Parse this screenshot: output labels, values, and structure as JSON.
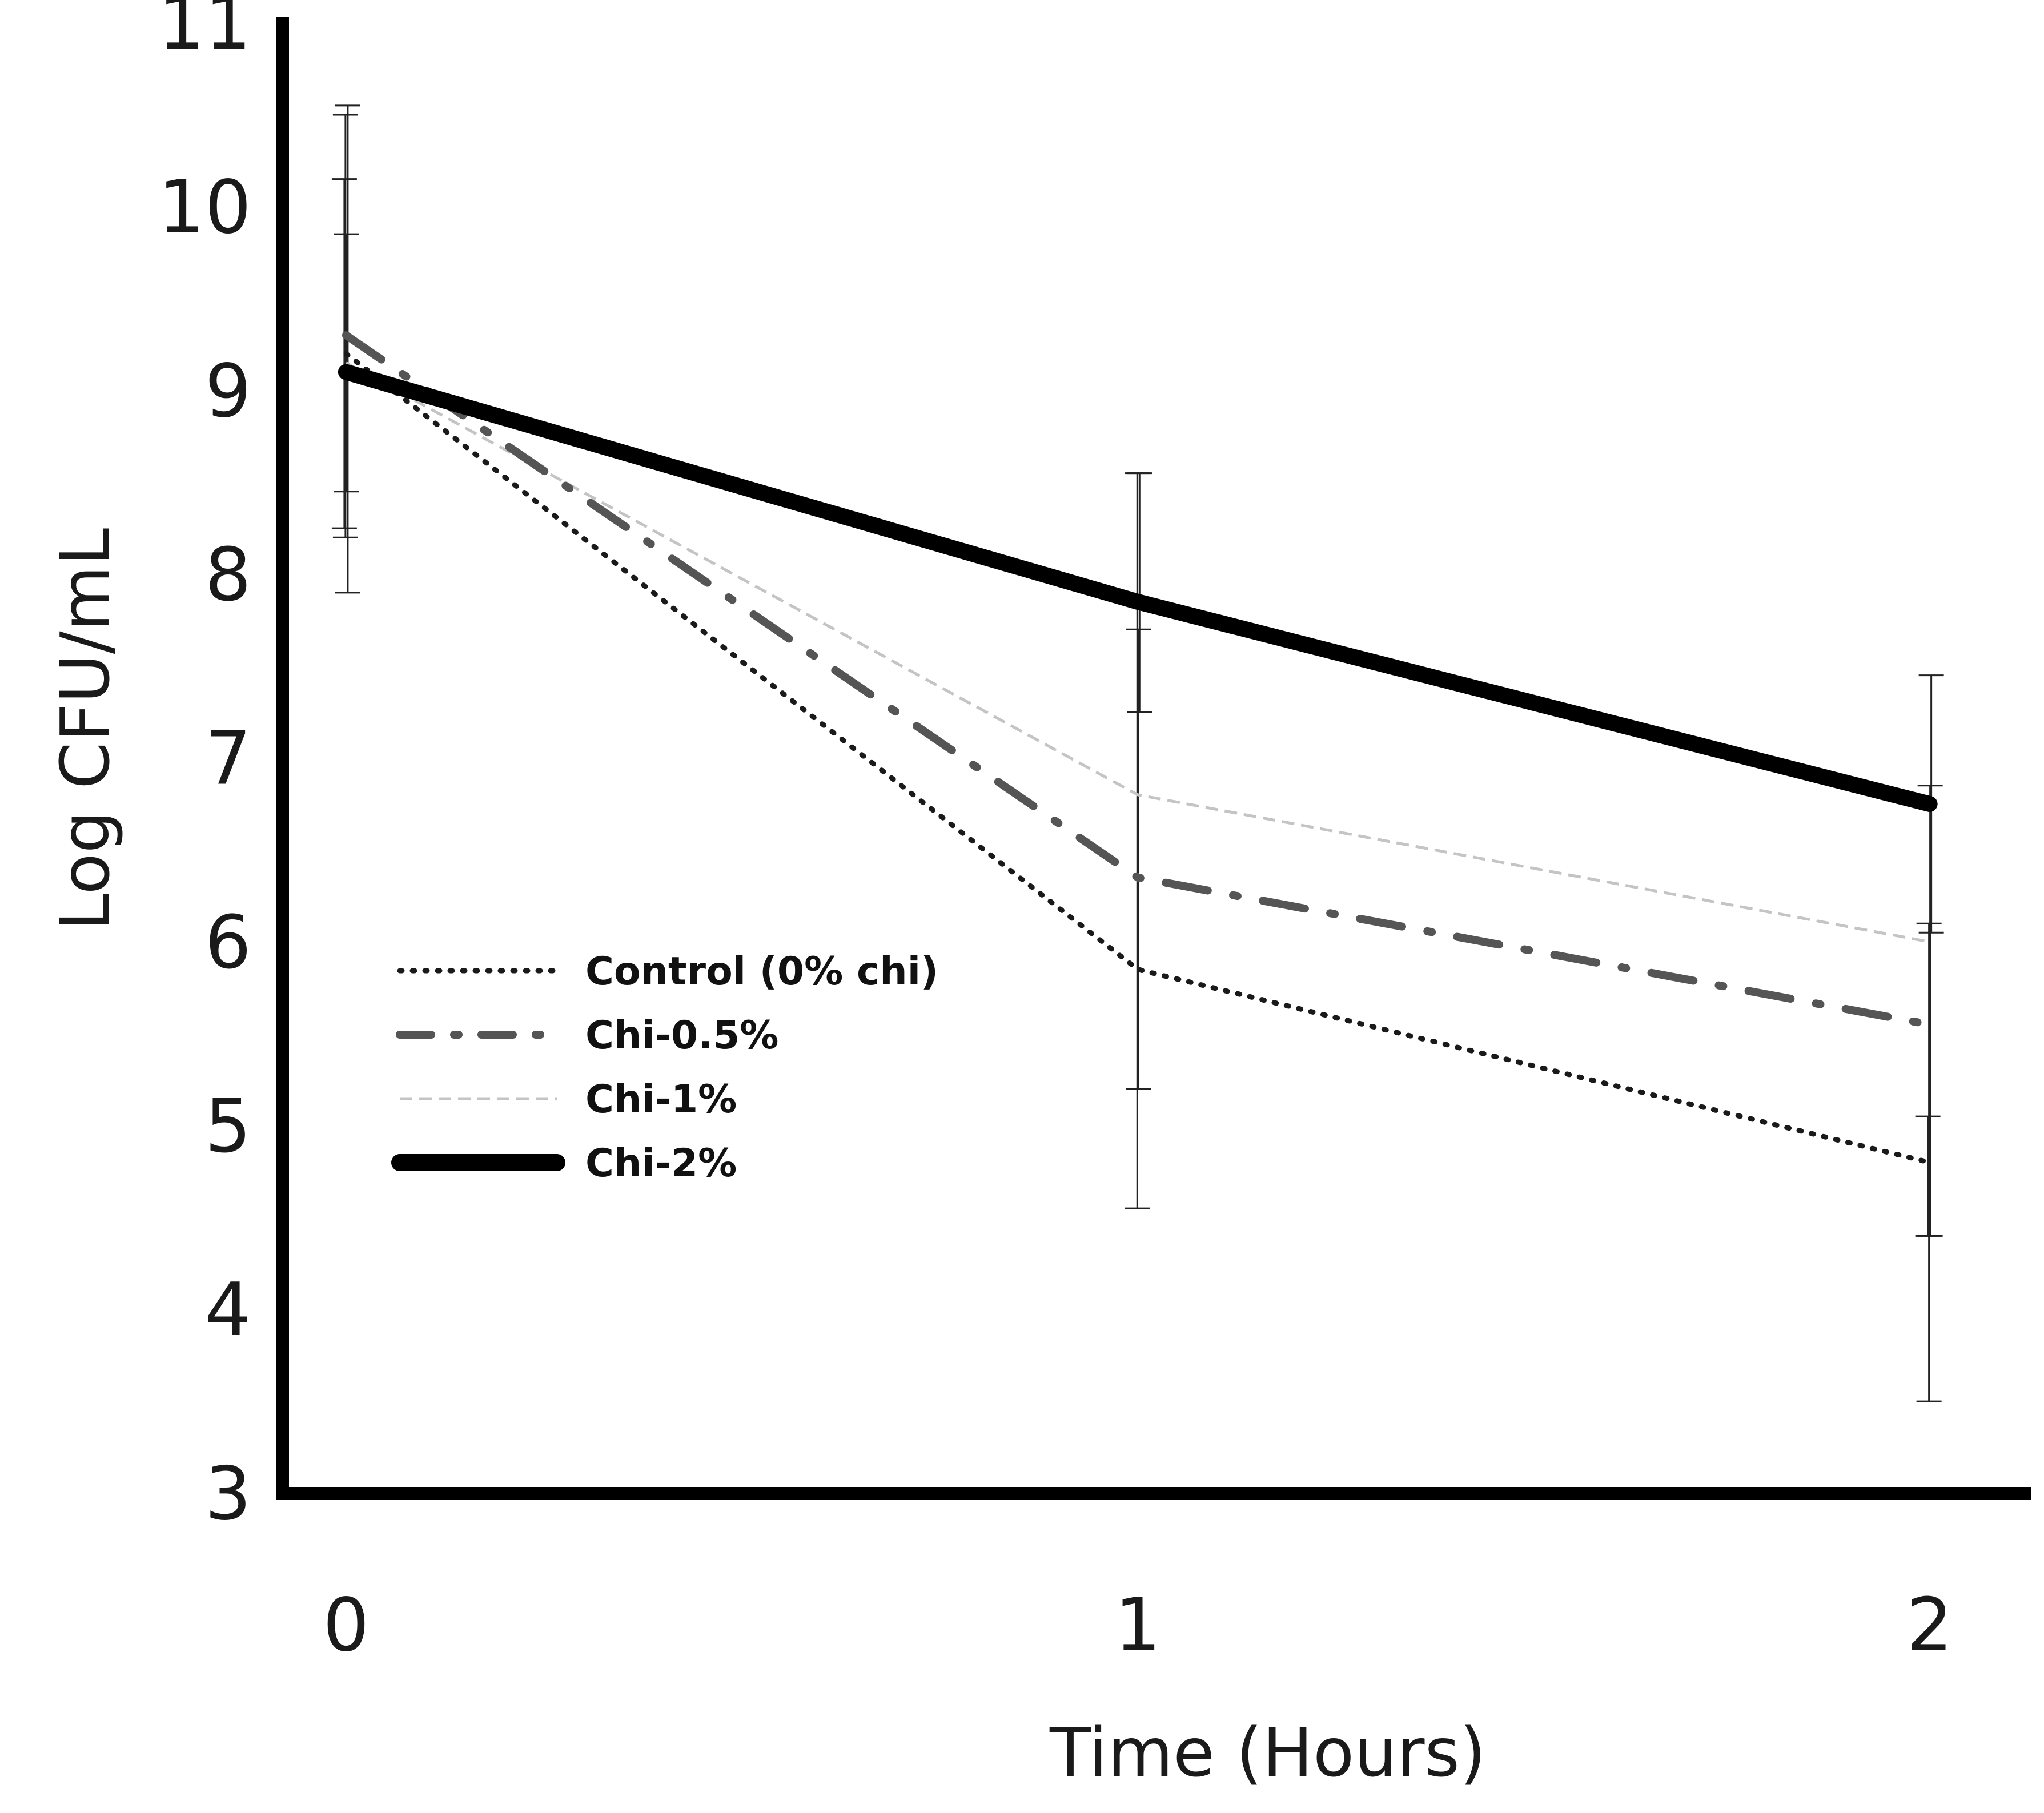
{
  "chart_data": {
    "type": "line",
    "title": "",
    "xlabel": "Time (Hours)",
    "ylabel": "Log CFU/mL",
    "x": [
      0,
      1,
      2
    ],
    "x_tick_labels": [
      "0",
      "1",
      "2"
    ],
    "xlim": [
      -0.08,
      2.12
    ],
    "ylim": [
      3,
      11
    ],
    "y_ticks": [
      3,
      4,
      5,
      6,
      7,
      8,
      9,
      10,
      11
    ],
    "y_tick_labels": [
      "3",
      "4",
      "5",
      "6",
      "7",
      "8",
      "9",
      "10",
      "11"
    ],
    "grid": false,
    "legend_position": "center-left",
    "series": [
      {
        "name": "Control (0% chi)",
        "values": [
          9.2,
          5.85,
          4.8
        ],
        "error_low": [
          8.25,
          null,
          4.4
        ],
        "error_high": [
          10.15,
          null,
          5.05
        ],
        "color": "#1a1a1a",
        "line_style": "dotted"
      },
      {
        "name": "Chi-0.5%",
        "values": [
          9.3,
          6.35,
          5.55
        ],
        "error_low": [
          8.2,
          4.55,
          3.5
        ],
        "error_high": [
          10.5,
          8.55,
          6.1
        ],
        "color": "#555555",
        "line_style": "dash-dot"
      },
      {
        "name": "Chi-1%",
        "values": [
          9.15,
          6.8,
          6.0
        ],
        "error_low": [
          8.45,
          5.2,
          4.4
        ],
        "error_high": [
          9.85,
          7.7,
          6.85
        ],
        "color": "#c4c4c4",
        "line_style": "dashed"
      },
      {
        "name": "Chi-2%",
        "values": [
          9.1,
          7.85,
          6.75
        ],
        "error_low": [
          7.9,
          7.25,
          6.05
        ],
        "error_high": [
          10.55,
          8.55,
          7.45
        ],
        "color": "#000000",
        "line_style": "solid-thick"
      }
    ]
  }
}
